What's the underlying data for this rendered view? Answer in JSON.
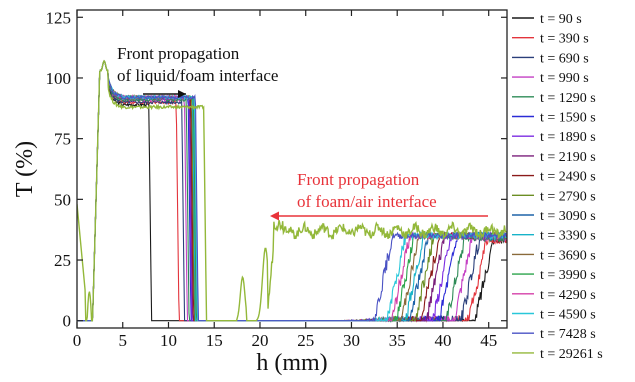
{
  "chart_data": {
    "type": "line",
    "xlabel": "h (mm)",
    "ylabel": "T (%)",
    "xlim": [
      0,
      47
    ],
    "ylim": [
      -3,
      128
    ],
    "xticks": [
      "0",
      "5",
      "10",
      "15",
      "20",
      "25",
      "30",
      "35",
      "40",
      "45"
    ],
    "yticks": [
      "0",
      "25",
      "50",
      "75",
      "100",
      "125"
    ],
    "grid": false,
    "legend_position": "right-outside",
    "annotations": [
      {
        "lines": [
          "Front propagation",
          "of liquid/foam interface"
        ],
        "color": "#111111",
        "arrow_direction": "right"
      },
      {
        "lines": [
          "Front propagation",
          "of foam/air interface"
        ],
        "color": "#e8333a",
        "arrow_direction": "left"
      }
    ],
    "series": [
      {
        "name": "t = 90 s",
        "color": "#1a1a1a",
        "liquid_front_mm": 8.0,
        "air_front_mm": 45.5,
        "foam_plateau": 33,
        "top_plateau": 89
      },
      {
        "name": "t = 390 s",
        "color": "#e3343c",
        "liquid_front_mm": 11.0,
        "air_front_mm": 44.8,
        "foam_plateau": 33,
        "top_plateau": 90
      },
      {
        "name": "t = 690 s",
        "color": "#2a3f7a",
        "liquid_front_mm": 11.6,
        "air_front_mm": 44.0,
        "foam_plateau": 34,
        "top_plateau": 90
      },
      {
        "name": "t = 990 s",
        "color": "#c43fc4",
        "liquid_front_mm": 11.9,
        "air_front_mm": 43.2,
        "foam_plateau": 34,
        "top_plateau": 91
      },
      {
        "name": "t = 1290 s",
        "color": "#2e8b57",
        "liquid_front_mm": 12.1,
        "air_front_mm": 42.4,
        "foam_plateau": 34,
        "top_plateau": 91
      },
      {
        "name": "t = 1590 s",
        "color": "#2b2bd6",
        "liquid_front_mm": 12.3,
        "air_front_mm": 41.6,
        "foam_plateau": 35,
        "top_plateau": 92
      },
      {
        "name": "t = 1890 s",
        "color": "#7b2be2",
        "liquid_front_mm": 12.4,
        "air_front_mm": 40.9,
        "foam_plateau": 35,
        "top_plateau": 92
      },
      {
        "name": "t = 2190 s",
        "color": "#7a1f7a",
        "liquid_front_mm": 12.5,
        "air_front_mm": 40.2,
        "foam_plateau": 35,
        "top_plateau": 92
      },
      {
        "name": "t = 2490 s",
        "color": "#8b1a1a",
        "liquid_front_mm": 12.6,
        "air_front_mm": 39.6,
        "foam_plateau": 35,
        "top_plateau": 92
      },
      {
        "name": "t = 2790 s",
        "color": "#6b8e23",
        "liquid_front_mm": 12.7,
        "air_front_mm": 39.0,
        "foam_plateau": 35,
        "top_plateau": 92
      },
      {
        "name": "t = 3090 s",
        "color": "#1e63a8",
        "liquid_front_mm": 12.8,
        "air_front_mm": 38.4,
        "foam_plateau": 35,
        "top_plateau": 92
      },
      {
        "name": "t = 3390 s",
        "color": "#17b3c9",
        "liquid_front_mm": 12.8,
        "air_front_mm": 37.9,
        "foam_plateau": 35,
        "top_plateau": 92
      },
      {
        "name": "t = 3690 s",
        "color": "#8a6a3a",
        "liquid_front_mm": 12.9,
        "air_front_mm": 37.4,
        "foam_plateau": 35,
        "top_plateau": 92
      },
      {
        "name": "t = 3990 s",
        "color": "#2aa34a",
        "liquid_front_mm": 12.9,
        "air_front_mm": 36.9,
        "foam_plateau": 35,
        "top_plateau": 92
      },
      {
        "name": "t = 4290 s",
        "color": "#d43fa8",
        "liquid_front_mm": 13.0,
        "air_front_mm": 36.4,
        "foam_plateau": 35,
        "top_plateau": 92
      },
      {
        "name": "t = 4590 s",
        "color": "#29c7d9",
        "liquid_front_mm": 13.0,
        "air_front_mm": 35.9,
        "foam_plateau": 35,
        "top_plateau": 92
      },
      {
        "name": "t = 7428 s",
        "color": "#4a52c4",
        "liquid_front_mm": 13.1,
        "air_front_mm": 34.5,
        "foam_plateau": 35,
        "top_plateau": 92
      },
      {
        "name": "t = 29261 s",
        "color": "#93b83a",
        "liquid_front_mm": 14.0,
        "air_front_mm": 21.5,
        "foam_plateau": 35,
        "top_plateau": 88
      }
    ]
  }
}
